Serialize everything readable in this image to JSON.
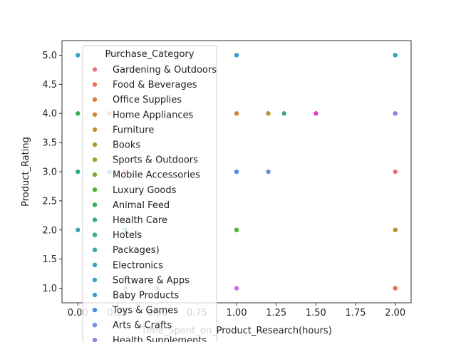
{
  "chart_data": {
    "type": "scatter",
    "xlabel": "Time_Spent_on_Product_Research(hours)",
    "ylabel": "Product_Rating",
    "xlim": [
      -0.1,
      2.1
    ],
    "ylim": [
      0.75,
      5.25
    ],
    "xticks": [
      0.0,
      0.25,
      0.5,
      0.75,
      1.0,
      1.25,
      1.5,
      1.75,
      2.0
    ],
    "xtick_labels": [
      "0.00",
      "0.25",
      "0.50",
      "0.75",
      "1.00",
      "1.25",
      "1.50",
      "1.75",
      "2.00"
    ],
    "yticks": [
      1.0,
      1.5,
      2.0,
      2.5,
      3.0,
      3.5,
      4.0,
      4.5,
      5.0
    ],
    "ytick_labels": [
      "1.0",
      "1.5",
      "2.0",
      "2.5",
      "3.0",
      "3.5",
      "4.0",
      "4.5",
      "5.0"
    ],
    "grid": false,
    "legend": {
      "title": "Purchase_Category",
      "placement": "upper-left",
      "entries": [
        {
          "name": "Gardening & Outdoors",
          "color": "#e8727a"
        },
        {
          "name": "Food & Beverages",
          "color": "#ec6f57"
        },
        {
          "name": "Office Supplies",
          "color": "#e07b3c"
        },
        {
          "name": "Home Appliances",
          "color": "#d1852f"
        },
        {
          "name": "Furniture",
          "color": "#c18f2c"
        },
        {
          "name": "Books",
          "color": "#b09a2b"
        },
        {
          "name": "Sports & Outdoors",
          "color": "#9aa52c"
        },
        {
          "name": "Mobile Accessories",
          "color": "#7aac2d"
        },
        {
          "name": "Luxury Goods",
          "color": "#4fb22c"
        },
        {
          "name": "Animal Feed",
          "color": "#33b055"
        },
        {
          "name": "Health Care",
          "color": "#35ad7e"
        },
        {
          "name": "Hotels",
          "color": "#36aa96"
        },
        {
          "name": "Packages)",
          "color": "#37a6a6"
        },
        {
          "name": "Electronics",
          "color": "#38a3b5"
        },
        {
          "name": "Software & Apps",
          "color": "#3aa0c8"
        },
        {
          "name": "Baby Products",
          "color": "#3c9ad8"
        },
        {
          "name": "Toys & Games",
          "color": "#4791e2"
        },
        {
          "name": "Arts & Crafts",
          "color": "#6d8be0"
        },
        {
          "name": "Health Supplements",
          "color": "#9080e0"
        }
      ]
    },
    "points": [
      {
        "x": 1.0,
        "y": 5.0,
        "color": "#3aa0c8"
      },
      {
        "x": 2.0,
        "y": 5.0,
        "color": "#3aa0c8"
      },
      {
        "x": 1.0,
        "y": 4.0,
        "color": "#d1852f"
      },
      {
        "x": 1.2,
        "y": 4.0,
        "color": "#c18f2c"
      },
      {
        "x": 1.3,
        "y": 4.0,
        "color": "#36aa96"
      },
      {
        "x": 1.5,
        "y": 4.0,
        "color": "#e040c8"
      },
      {
        "x": 2.0,
        "y": 4.0,
        "color": "#9080e0"
      },
      {
        "x": 0.7,
        "y": 4.0,
        "color": "#3c9ad8"
      },
      {
        "x": 1.0,
        "y": 3.0,
        "color": "#4791e2"
      },
      {
        "x": 1.2,
        "y": 3.0,
        "color": "#6d8be0"
      },
      {
        "x": 2.0,
        "y": 3.0,
        "color": "#e8727a"
      },
      {
        "x": 1.0,
        "y": 2.0,
        "color": "#4fb22c"
      },
      {
        "x": 2.0,
        "y": 2.0,
        "color": "#c18f2c"
      },
      {
        "x": 1.0,
        "y": 1.0,
        "color": "#c070e8"
      },
      {
        "x": 2.0,
        "y": 1.0,
        "color": "#ec6f57"
      },
      {
        "x": 0.0,
        "y": 5.0,
        "color": "#3aa0c8"
      },
      {
        "x": 0.2,
        "y": 5.0,
        "color": "#38a3b5"
      },
      {
        "x": 0.25,
        "y": 5.0,
        "color": "#3c9ad8"
      },
      {
        "x": 0.0,
        "y": 4.0,
        "color": "#33b055"
      },
      {
        "x": 0.2,
        "y": 4.0,
        "color": "#b09a2b"
      },
      {
        "x": 0.0,
        "y": 3.0,
        "color": "#35ad7e"
      },
      {
        "x": 0.2,
        "y": 3.0,
        "color": "#3aa0c8"
      },
      {
        "x": 0.3,
        "y": 3.0,
        "color": "#ec6f57"
      },
      {
        "x": 0.0,
        "y": 2.0,
        "color": "#38a3b5"
      },
      {
        "x": 0.3,
        "y": 2.0,
        "color": "#36aa96"
      },
      {
        "x": 0.3,
        "y": 1.0,
        "color": "#e07b3c"
      },
      {
        "x": 0.5,
        "y": 1.0,
        "color": "#4791e2"
      }
    ]
  }
}
